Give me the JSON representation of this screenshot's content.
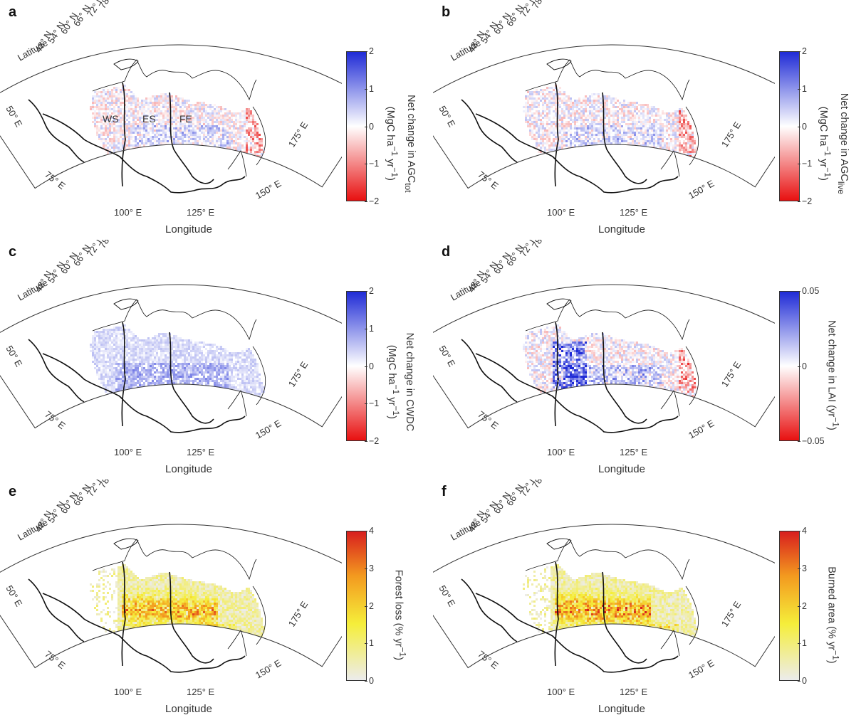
{
  "panels": [
    {
      "letter": "a",
      "latitude_label": "Latitude",
      "longitude_label": "Longitude",
      "lat_ticks": [
        "48° N",
        "54° N",
        "60° N",
        "66° N",
        "72° N",
        "78° N"
      ],
      "lon_ticks": [
        "50° E",
        "75° E",
        "100° E",
        "125° E",
        "150° E",
        "175° E"
      ],
      "colorbar": {
        "ticks": [
          "2",
          "1",
          "0",
          "−1",
          "−2"
        ],
        "line1": "Net change in AGC<sub>tot</sub>",
        "line2": "(MgC ha<sup>−1</sup> yr<sup>−1</sup>)",
        "scheme": "diverging",
        "min": -2,
        "max": 2
      },
      "regions": [
        "WS",
        "ES",
        "FE"
      ],
      "pattern": "mixed"
    },
    {
      "letter": "b",
      "latitude_label": "Latitude",
      "longitude_label": "Longitude",
      "lat_ticks": [
        "48° N",
        "54° N",
        "60° N",
        "66° N",
        "72° N",
        "78° N"
      ],
      "lon_ticks": [
        "50° E",
        "75° E",
        "100° E",
        "125° E",
        "150° E",
        "175° E"
      ],
      "colorbar": {
        "ticks": [
          "2",
          "1",
          "0",
          "−1",
          "−2"
        ],
        "line1": "Net change in AGC<sub>live</sub>",
        "line2": "(MgC ha<sup>−1</sup> yr<sup>−1</sup>)",
        "scheme": "diverging",
        "min": -2,
        "max": 2
      },
      "regions": [],
      "pattern": "mixed"
    },
    {
      "letter": "c",
      "latitude_label": "Latitude",
      "longitude_label": "Longitude",
      "lat_ticks": [
        "48° N",
        "54° N",
        "60° N",
        "66° N",
        "72° N",
        "78° N"
      ],
      "lon_ticks": [
        "50° E",
        "75° E",
        "100° E",
        "125° E",
        "150° E",
        "175° E"
      ],
      "colorbar": {
        "ticks": [
          "2",
          "1",
          "0",
          "−1",
          "−2"
        ],
        "line1": "Net change in CWDC",
        "line2": "(MgC ha<sup>−1</sup> yr<sup>−1</sup>)",
        "scheme": "diverging",
        "min": -2,
        "max": 2
      },
      "regions": [],
      "pattern": "blue"
    },
    {
      "letter": "d",
      "latitude_label": "Latitude",
      "longitude_label": "Longitude",
      "lat_ticks": [
        "48° N",
        "54° N",
        "60° N",
        "66° N",
        "72° N",
        "78° N"
      ],
      "lon_ticks": [
        "50° E",
        "75° E",
        "100° E",
        "125° E",
        "150° E",
        "175° E"
      ],
      "colorbar": {
        "ticks": [
          "0.05",
          "0",
          "−0.05"
        ],
        "line1": "Net change in LAI (yr<sup>−1</sup>)",
        "line2": "",
        "scheme": "diverging",
        "min": -0.05,
        "max": 0.05
      },
      "regions": [],
      "pattern": "strong"
    },
    {
      "letter": "e",
      "latitude_label": "Latitude",
      "longitude_label": "Longitude",
      "lat_ticks": [
        "48° N",
        "54° N",
        "60° N",
        "66° N",
        "72° N",
        "78° N"
      ],
      "lon_ticks": [
        "50° E",
        "75° E",
        "100° E",
        "125° E",
        "150° E",
        "175° E"
      ],
      "colorbar": {
        "ticks": [
          "4",
          "3",
          "2",
          "1",
          "0"
        ],
        "line1": "Forest loss (% yr<sup>−1</sup>)",
        "line2": "",
        "scheme": "heat",
        "min": 0,
        "max": 4
      },
      "regions": [],
      "pattern": "heat"
    },
    {
      "letter": "f",
      "latitude_label": "Latitude",
      "longitude_label": "Longitude",
      "lat_ticks": [
        "48° N",
        "54° N",
        "60° N",
        "66° N",
        "72° N",
        "78° N"
      ],
      "lon_ticks": [
        "50° E",
        "75° E",
        "100° E",
        "125° E",
        "150° E",
        "175° E"
      ],
      "colorbar": {
        "ticks": [
          "4",
          "3",
          "2",
          "1",
          "0"
        ],
        "line1": "Burned area (% yr<sup>−1</sup>)",
        "line2": "",
        "scheme": "heat",
        "min": 0,
        "max": 4
      },
      "regions": [],
      "pattern": "heat2"
    }
  ],
  "colors": {
    "blue": "#1f2bd6",
    "white": "#ffffff",
    "red": "#e81010",
    "grey": "#ececec",
    "yellow": "#f5ee3a",
    "orange": "#f39a1f",
    "heatred": "#d81e1e"
  }
}
